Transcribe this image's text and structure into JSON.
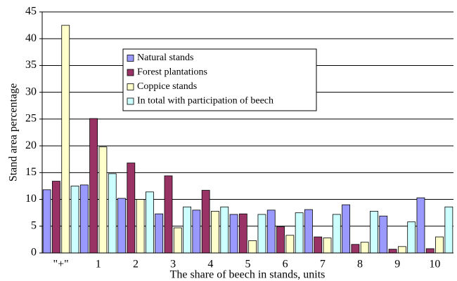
{
  "chart_data": {
    "type": "bar",
    "xlabel": "The share of beech in stands, units",
    "ylabel": "Stand area percentage",
    "categories": [
      "\"+\"",
      "1",
      "2",
      "3",
      "4",
      "5",
      "6",
      "7",
      "8",
      "9",
      "10"
    ],
    "series": [
      {
        "name": "Natural stands",
        "color": "#9999ff",
        "values": [
          11.8,
          12.7,
          10.2,
          7.3,
          8.0,
          7.2,
          8.0,
          8.1,
          9.0,
          6.9,
          10.3
        ]
      },
      {
        "name": "Forest plantations",
        "color": "#993366",
        "values": [
          13.4,
          25.1,
          16.8,
          14.4,
          11.7,
          7.3,
          4.9,
          3.0,
          1.6,
          0.7,
          0.8
        ]
      },
      {
        "name": "Coppice stands",
        "color": "#ffffcc",
        "values": [
          42.5,
          19.8,
          10.0,
          4.7,
          7.8,
          2.3,
          3.3,
          2.8,
          2.0,
          1.2,
          3.0
        ]
      },
      {
        "name": "In total with participation of beech",
        "color": "#ccffff",
        "values": [
          12.5,
          14.8,
          11.4,
          8.6,
          8.6,
          7.2,
          7.5,
          7.2,
          7.8,
          5.8,
          8.6
        ]
      }
    ],
    "ylim": [
      0,
      45
    ],
    "yticks": [
      0,
      5,
      10,
      15,
      20,
      25,
      30,
      35,
      40,
      45
    ],
    "grid": true,
    "legend": "upper center"
  }
}
